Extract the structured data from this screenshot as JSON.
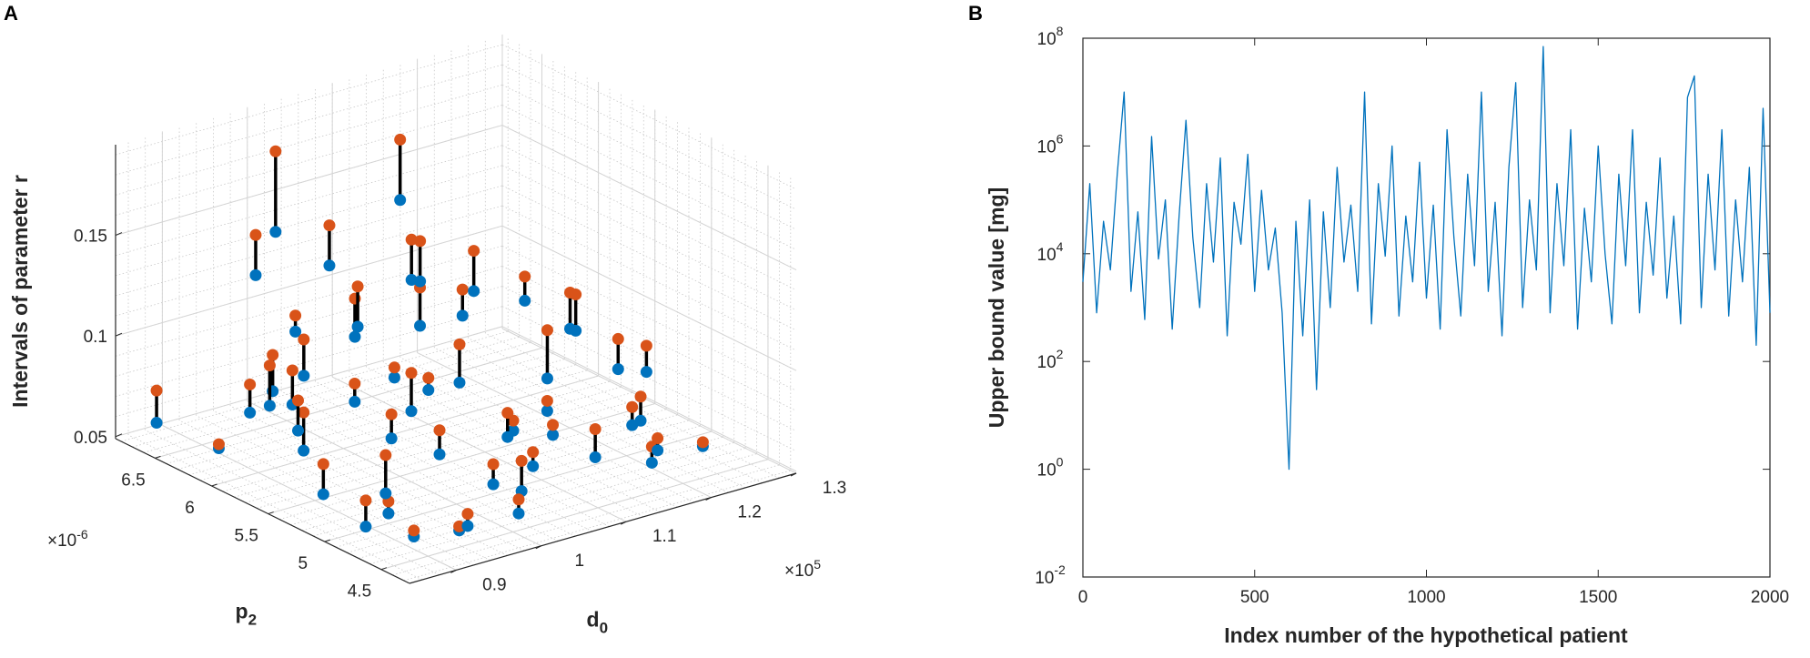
{
  "chart_data": [
    {
      "type": "scatter3d-stem",
      "label": "A",
      "x": [
        0.86,
        0.88,
        0.9,
        0.92,
        0.95,
        0.97,
        1.0,
        1.02,
        1.05,
        1.08,
        1.1,
        1.12,
        1.15,
        1.18,
        1.2,
        1.22,
        1.25,
        1.28,
        0.87,
        0.91,
        0.94,
        0.99,
        1.03,
        1.07,
        1.11,
        1.14,
        1.19,
        1.24,
        1.27,
        0.89,
        0.93,
        0.96,
        1.01,
        1.04,
        1.09,
        1.13,
        1.16,
        1.21,
        1.26,
        0.88,
        0.92,
        0.98,
        1.02,
        1.06,
        1.1,
        1.17,
        1.23,
        1.29,
        0.95,
        1.0,
        1.05,
        1.12,
        1.18,
        0.9,
        1.08
      ],
      "y": [
        6.6,
        6.2,
        5.6,
        5.0,
        4.6,
        6.4,
        5.9,
        5.3,
        4.8,
        6.5,
        6.0,
        5.4,
        4.9,
        6.3,
        5.7,
        5.1,
        4.7,
        6.1,
        5.2,
        4.7,
        6.0,
        5.5,
        4.9,
        6.4,
        5.8,
        5.2,
        4.7,
        6.2,
        5.6,
        6.0,
        5.1,
        4.6,
        6.5,
        5.7,
        5.0,
        6.3,
        5.4,
        4.8,
        5.9,
        4.9,
        5.8,
        6.2,
        4.6,
        6.0,
        5.3,
        6.6,
        5.1,
        5.5,
        6.4,
        6.6,
        6.5,
        6.3,
        6.2,
        5.9,
        6.1
      ],
      "series": [
        {
          "color": "#0072BD",
          "values": [
            0.062,
            0.058,
            0.071,
            0.054,
            0.053,
            0.07,
            0.075,
            0.063,
            0.055,
            0.081,
            0.066,
            0.06,
            0.057,
            0.085,
            0.068,
            0.059,
            0.056,
            0.072,
            0.064,
            0.052,
            0.078,
            0.069,
            0.058,
            0.09,
            0.074,
            0.061,
            0.055,
            0.088,
            0.067,
            0.08,
            0.06,
            0.054,
            0.092,
            0.071,
            0.057,
            0.086,
            0.065,
            0.056,
            0.079,
            0.055,
            0.073,
            0.082,
            0.053,
            0.077,
            0.062,
            0.095,
            0.06,
            0.066,
            0.13,
            0.14,
            0.12,
            0.11,
            0.1,
            0.085,
            0.16
          ]
        },
        {
          "color": "#D95319",
          "values": [
            0.078,
            0.06,
            0.09,
            0.06,
            0.055,
            0.088,
            0.084,
            0.075,
            0.07,
            0.1,
            0.072,
            0.065,
            0.071,
            0.098,
            0.092,
            0.068,
            0.058,
            0.09,
            0.079,
            0.055,
            0.095,
            0.081,
            0.068,
            0.11,
            0.093,
            0.066,
            0.063,
            0.1,
            0.082,
            0.094,
            0.079,
            0.06,
            0.1,
            0.09,
            0.064,
            0.105,
            0.07,
            0.062,
            0.097,
            0.068,
            0.088,
            0.1,
            0.06,
            0.082,
            0.074,
            0.115,
            0.072,
            0.079,
            0.15,
            0.18,
            0.14,
            0.13,
            0.12,
            0.105,
            0.19
          ]
        }
      ],
      "stem_color": "#000000",
      "xlim": [
        0.845,
        1.3
      ],
      "ylim": [
        4.25,
        6.85
      ],
      "zlim": [
        0.049,
        0.195
      ],
      "xticks": [
        0.9,
        1,
        1.1,
        1.2,
        1.3
      ],
      "yticks": [
        4.5,
        5,
        5.5,
        6,
        6.5
      ],
      "zticks": [
        0.05,
        0.1,
        0.15
      ],
      "xlabel": "d",
      "xlabel_subscript": "0",
      "ylabel": "p",
      "ylabel_subscript": "2",
      "zlabel": "Intervals of parameter r",
      "x_multiplier": "×10",
      "x_multiplier_exponent": "5",
      "y_multiplier": "×10",
      "y_multiplier_exponent": "-6",
      "grid": true
    },
    {
      "type": "line",
      "label": "B",
      "x": [
        0,
        20,
        40,
        60,
        80,
        100,
        120,
        140,
        160,
        180,
        200,
        220,
        240,
        260,
        280,
        300,
        320,
        340,
        360,
        380,
        400,
        420,
        440,
        460,
        480,
        500,
        520,
        540,
        560,
        580,
        600,
        620,
        640,
        660,
        680,
        700,
        720,
        740,
        760,
        780,
        800,
        820,
        840,
        860,
        880,
        900,
        920,
        940,
        960,
        980,
        1000,
        1020,
        1040,
        1060,
        1080,
        1100,
        1120,
        1140,
        1160,
        1180,
        1200,
        1220,
        1240,
        1260,
        1280,
        1300,
        1320,
        1340,
        1360,
        1380,
        1400,
        1420,
        1440,
        1460,
        1480,
        1500,
        1520,
        1540,
        1560,
        1580,
        1600,
        1620,
        1640,
        1660,
        1680,
        1700,
        1720,
        1740,
        1760,
        1780,
        1800,
        1820,
        1840,
        1860,
        1880,
        1900,
        1920,
        1940,
        1960,
        1980,
        2000
      ],
      "series": [
        {
          "color": "#0072BD",
          "values": [
            3000,
            200000,
            800,
            40000,
            5000,
            300000,
            10000000,
            2000,
            60000,
            600,
            1500000,
            8000,
            100000,
            400,
            50000,
            3000000,
            20000,
            1000,
            200000,
            7000,
            600000,
            300,
            90000,
            15000,
            700000,
            2000,
            150000,
            5000,
            30000,
            800,
            1,
            40000,
            300,
            100000,
            30,
            60000,
            1000,
            400000,
            7000,
            80000,
            2000,
            10000000,
            500,
            200000,
            9000,
            1000000,
            700,
            50000,
            3000,
            500000,
            1500,
            80000,
            400,
            2000000,
            20000,
            700,
            300000,
            6000,
            10000000,
            2000,
            90000,
            300,
            400000,
            15000000,
            1000,
            100000,
            5000,
            70000000,
            800,
            200000,
            6000,
            2000000,
            400,
            70000,
            3000,
            1000000,
            10000,
            500,
            300000,
            6000,
            2000000,
            800,
            90000,
            4000,
            600000,
            1500,
            50000,
            500,
            8000000,
            20000000,
            1000,
            300000,
            5000,
            2000000,
            700,
            100000,
            3000,
            400000,
            200,
            5000000,
            800
          ]
        }
      ],
      "xlim": [
        0,
        2000
      ],
      "ylim": [
        0.01,
        100000000
      ],
      "log_y": true,
      "xticks": [
        0,
        500,
        1000,
        1500,
        2000
      ],
      "yticks": [
        {
          "value": 0.01,
          "label": "10",
          "exponent": "-2"
        },
        {
          "value": 1,
          "label": "10",
          "exponent": "0"
        },
        {
          "value": 100,
          "label": "10",
          "exponent": "2"
        },
        {
          "value": 10000,
          "label": "10",
          "exponent": "4"
        },
        {
          "value": 1000000,
          "label": "10",
          "exponent": "6"
        },
        {
          "value": 100000000,
          "label": "10",
          "exponent": "8"
        }
      ],
      "xlabel": "Index number of the hypothetical patient",
      "ylabel": "Upper bound value [mg]",
      "grid": false
    }
  ]
}
